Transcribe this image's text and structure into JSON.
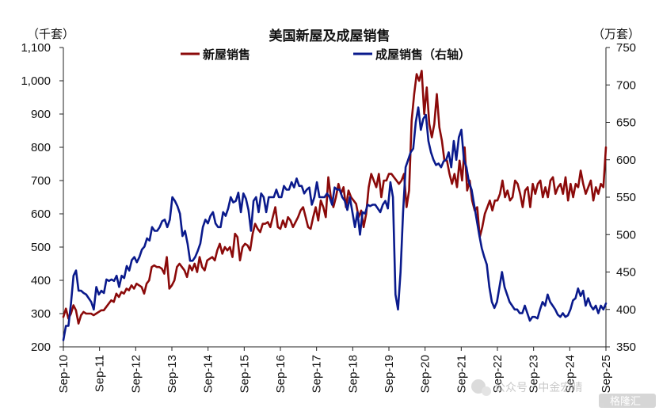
{
  "chart_data": {
    "type": "line",
    "title": "美国新屋及成屋销售",
    "left_unit": "（千套）",
    "right_unit": "（万套）",
    "left_axis": {
      "min": 200,
      "max": 1100,
      "ticks": [
        "200",
        "300",
        "400",
        "500",
        "600",
        "700",
        "800",
        "900",
        "1,000",
        "1,100"
      ]
    },
    "right_axis": {
      "min": 350,
      "max": 750,
      "ticks": [
        "350",
        "400",
        "450",
        "500",
        "550",
        "600",
        "650",
        "700",
        "750"
      ]
    },
    "x_labels": [
      "Sep-10",
      "Sep-11",
      "Sep-12",
      "Sep-13",
      "Sep-14",
      "Sep-15",
      "Sep-16",
      "Sep-17",
      "Sep-18",
      "Sep-19",
      "Sep-20",
      "Sep-21",
      "Sep-22",
      "Sep-23",
      "Sep-24",
      "Sep-25"
    ],
    "x_start": "2010-09",
    "series": [
      {
        "name": "新屋销售",
        "axis": "left",
        "color": "#8B0A0A",
        "values": [
          290,
          315,
          285,
          300,
          325,
          310,
          270,
          295,
          305,
          300,
          300,
          300,
          295,
          300,
          305,
          310,
          310,
          320,
          330,
          340,
          335,
          360,
          350,
          365,
          360,
          375,
          370,
          385,
          375,
          390,
          385,
          380,
          360,
          390,
          400,
          440,
          445,
          440,
          440,
          435,
          420,
          470,
          375,
          385,
          400,
          440,
          450,
          440,
          430,
          410,
          445,
          430,
          450,
          425,
          470,
          440,
          430,
          460,
          465,
          470,
          460,
          490,
          510,
          480,
          500,
          490,
          500,
          470,
          540,
          530,
          460,
          500,
          510,
          505,
          490,
          540,
          570,
          555,
          545,
          570,
          570,
          575,
          560,
          590,
          620,
          560,
          555,
          580,
          560,
          590,
          580,
          560,
          575,
          590,
          610,
          620,
          590,
          560,
          555,
          590,
          620,
          580,
          640,
          620,
          590,
          710,
          650,
          620,
          650,
          690,
          660,
          680,
          620,
          670,
          650,
          640,
          630,
          590,
          610,
          560,
          600,
          680,
          720,
          700,
          680,
          720,
          650,
          700,
          700,
          720,
          720,
          710,
          700,
          690,
          700,
          720,
          620,
          670,
          880,
          960,
          1020,
          1000,
          1030,
          900,
          980,
          870,
          830,
          870,
          960,
          860,
          820,
          760,
          760,
          720,
          690,
          720,
          680,
          760,
          700,
          800,
          670,
          700,
          640,
          610,
          620,
          530,
          560,
          600,
          620,
          640,
          610,
          640,
          640,
          660,
          700,
          650,
          670,
          640,
          650,
          700,
          690,
          660,
          620,
          670,
          680,
          620,
          690,
          660,
          690,
          700,
          650,
          680,
          650,
          700,
          710,
          660,
          680,
          690,
          660,
          710,
          640,
          690,
          650,
          690,
          680,
          730,
          690,
          660,
          680,
          700,
          640,
          680,
          660,
          690,
          680,
          800
        ]
      },
      {
        "name": "成屋销售（右轴）",
        "axis": "right",
        "color": "#0A1A8C",
        "values": [
          359,
          378,
          378,
          408,
          445,
          452,
          425,
          425,
          422,
          420,
          415,
          410,
          400,
          430,
          420,
          425,
          422,
          440,
          438,
          440,
          438,
          445,
          430,
          445,
          442,
          458,
          452,
          466,
          470,
          463,
          470,
          480,
          484,
          495,
          492,
          510,
          505,
          505,
          510,
          518,
          520,
          510,
          520,
          550,
          545,
          538,
          528,
          498,
          505,
          488,
          465,
          465,
          470,
          478,
          488,
          510,
          520,
          515,
          525,
          530,
          515,
          510,
          510,
          530,
          525,
          535,
          550,
          543,
          545,
          556,
          530,
          555,
          548,
          533,
          505,
          545,
          550,
          530,
          555,
          550,
          530,
          550,
          550,
          550,
          560,
          550,
          550,
          565,
          560,
          560,
          570,
          563,
          575,
          565,
          565,
          555,
          560,
          563,
          540,
          550,
          570,
          550,
          550,
          550,
          555,
          550,
          540,
          563,
          560,
          560,
          550,
          545,
          533,
          550,
          530,
          510,
          530,
          500,
          530,
          528,
          540,
          538,
          540,
          540,
          535,
          530,
          540,
          545,
          535,
          570,
          550,
          420,
          400,
          450,
          530,
          590,
          600,
          610,
          615,
          650,
          670,
          640,
          655,
          660,
          625,
          610,
          600,
          593,
          595,
          590,
          598,
          600,
          610,
          590,
          625,
          600,
          630,
          640,
          600,
          590,
          570,
          560,
          540,
          520,
          500,
          482,
          470,
          460,
          430,
          410,
          402,
          410,
          430,
          450,
          430,
          420,
          410,
          405,
          400,
          400,
          395,
          395,
          405,
          395,
          385,
          390,
          390,
          388,
          400,
          410,
          405,
          420,
          410,
          405,
          400,
          393,
          390,
          395,
          390,
          392,
          400,
          412,
          415,
          428,
          418,
          425,
          405,
          415,
          405,
          400,
          405,
          395,
          405,
          400,
          408
        ]
      }
    ]
  },
  "watermark": {
    "text": "公众号 · 中金宏晴",
    "logo": "格隆汇"
  }
}
